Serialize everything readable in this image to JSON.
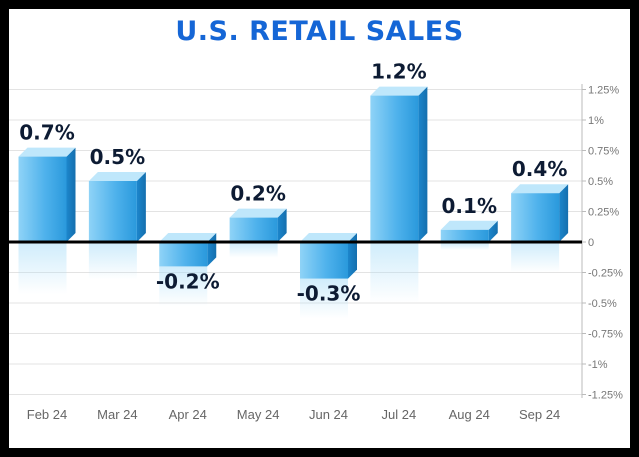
{
  "chart_data": {
    "type": "bar",
    "title": "U.S. RETAIL SALES",
    "xlabel": "",
    "ylabel": "",
    "categories": [
      "Feb 24",
      "Mar 24",
      "Apr 24",
      "May 24",
      "Jun 24",
      "Jul 24",
      "Aug 24",
      "Sep 24"
    ],
    "values": [
      0.7,
      0.5,
      -0.2,
      0.2,
      -0.3,
      1.2,
      0.1,
      0.4
    ],
    "data_labels": [
      "0.7%",
      "0.5%",
      "-0.2%",
      "0.2%",
      "-0.3%",
      "1.2%",
      "0.1%",
      "0.4%"
    ],
    "ylim": [
      -1.25,
      1.25
    ],
    "yticks": [
      1.25,
      1,
      0.75,
      0.5,
      0.25,
      0,
      -0.25,
      -0.5,
      -0.75,
      -1,
      -1.25
    ],
    "ytick_labels": [
      "1.25%",
      "1%",
      "0.75%",
      "0.5%",
      "0.25%",
      "0",
      "-0.25%",
      "-0.5%",
      "-0.75%",
      "-1%",
      "-1.25%"
    ],
    "y_axis_position": "right",
    "grid": true,
    "legend": "none",
    "colors": {
      "bar_light": "#8fd3f7",
      "bar_dark": "#1c8fd6",
      "title": "#1566d6",
      "zero_line": "#000000",
      "frame": "#000000"
    }
  }
}
